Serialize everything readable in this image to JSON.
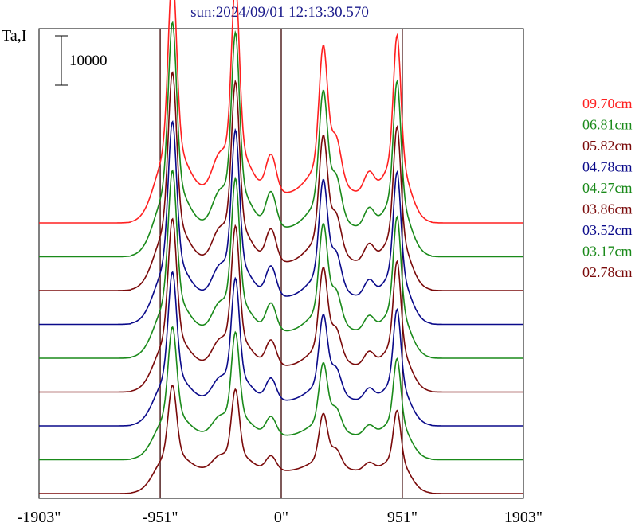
{
  "chart_data": {
    "type": "line",
    "title": "sun:2024/09/01 12:13:30.570",
    "ylabel": "Ta,I",
    "scale_bar_label": "10000",
    "scale_bar_value": 10000,
    "xlim": [
      -1903,
      1903
    ],
    "xticks": [
      {
        "value": -1903,
        "label": "-1903\""
      },
      {
        "value": -951,
        "label": "-951\""
      },
      {
        "value": 0,
        "label": "0\""
      },
      {
        "value": 951,
        "label": "951\""
      },
      {
        "value": 1903,
        "label": "1903\""
      }
    ],
    "vlines": [
      -951,
      0,
      951
    ],
    "series": [
      {
        "name": "09.70cm",
        "color": "#ff2020",
        "base": 0,
        "peak": 1.0
      },
      {
        "name": "06.81cm",
        "color": "#1a8a1a",
        "base": 0,
        "peak": 0.95
      },
      {
        "name": "05.82cm",
        "color": "#7a0a0a",
        "base": 0,
        "peak": 0.9
      },
      {
        "name": "04.78cm",
        "color": "#0a0a8a",
        "base": 0,
        "peak": 0.85
      },
      {
        "name": "04.27cm",
        "color": "#1a8a1a",
        "base": 0,
        "peak": 0.8
      },
      {
        "name": "03.86cm",
        "color": "#7a0a0a",
        "base": 0,
        "peak": 0.75
      },
      {
        "name": "03.52cm",
        "color": "#0a0a8a",
        "base": 0,
        "peak": 0.68
      },
      {
        "name": "03.17cm",
        "color": "#1a8a1a",
        "base": 0,
        "peak": 0.6
      },
      {
        "name": "02.78cm",
        "color": "#7a0a0a",
        "base": 0,
        "peak": 0.5
      }
    ]
  }
}
